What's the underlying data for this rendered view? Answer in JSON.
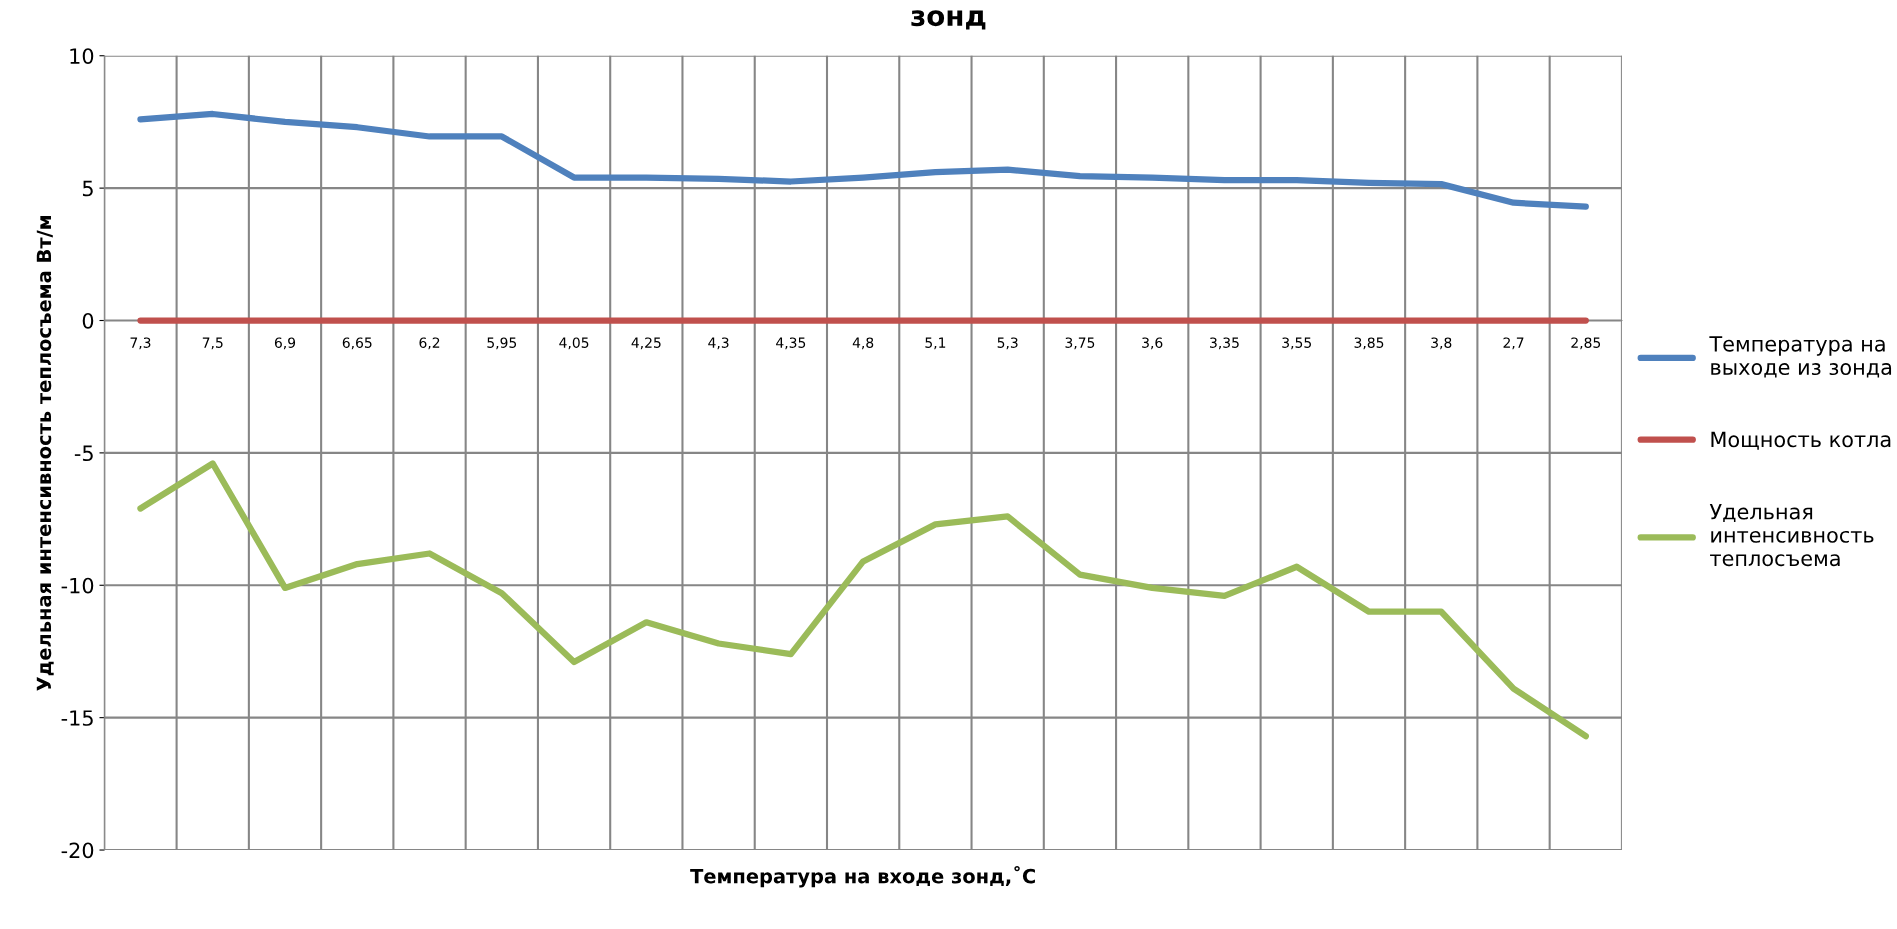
{
  "chart_data": {
    "type": "line",
    "title": "зонд",
    "xlabel": "Температура на входе зонд,˚С",
    "ylabel": "Удельная интенсивность теплосъема Вт/м",
    "categories": [
      "7,3",
      "7,5",
      "6,9",
      "6,65",
      "6,2",
      "5,95",
      "4,05",
      "4,25",
      "4,3",
      "4,35",
      "4,8",
      "5,1",
      "5,3",
      "3,75",
      "3,6",
      "3,35",
      "3,55",
      "3,85",
      "3,8",
      "2,7",
      "2,85"
    ],
    "series": [
      {
        "name": "Температура на\nвыходе из зонда",
        "color": "#4f81bd",
        "values": [
          7.6,
          7.8,
          7.5,
          7.3,
          6.95,
          6.95,
          5.4,
          5.4,
          5.35,
          5.25,
          5.4,
          5.6,
          5.7,
          5.45,
          5.4,
          5.3,
          5.3,
          5.2,
          5.15,
          4.45,
          4.3
        ]
      },
      {
        "name": "Мощность котла",
        "color": "#c0504d",
        "values": [
          0,
          0,
          0,
          0,
          0,
          0,
          0,
          0,
          0,
          0,
          0,
          0,
          0,
          0,
          0,
          0,
          0,
          0,
          0,
          0,
          0
        ]
      },
      {
        "name": "Удельная\nинтенсивность\nтеплосъема",
        "color": "#9bbb59",
        "values": [
          -7.1,
          -5.4,
          -10.1,
          -9.2,
          -8.8,
          -10.3,
          -12.9,
          -11.4,
          -12.2,
          -12.6,
          -9.1,
          -7.7,
          -7.4,
          -9.6,
          -10.1,
          -10.4,
          -9.3,
          -11.0,
          -11.0,
          -13.9,
          -15.7
        ]
      }
    ],
    "ylim": [
      -20,
      10
    ],
    "yticks": [
      -20,
      -15,
      -10,
      -5,
      0,
      5,
      10
    ],
    "grid": true,
    "legend": "right",
    "marker": "none",
    "line_style": "solid"
  }
}
